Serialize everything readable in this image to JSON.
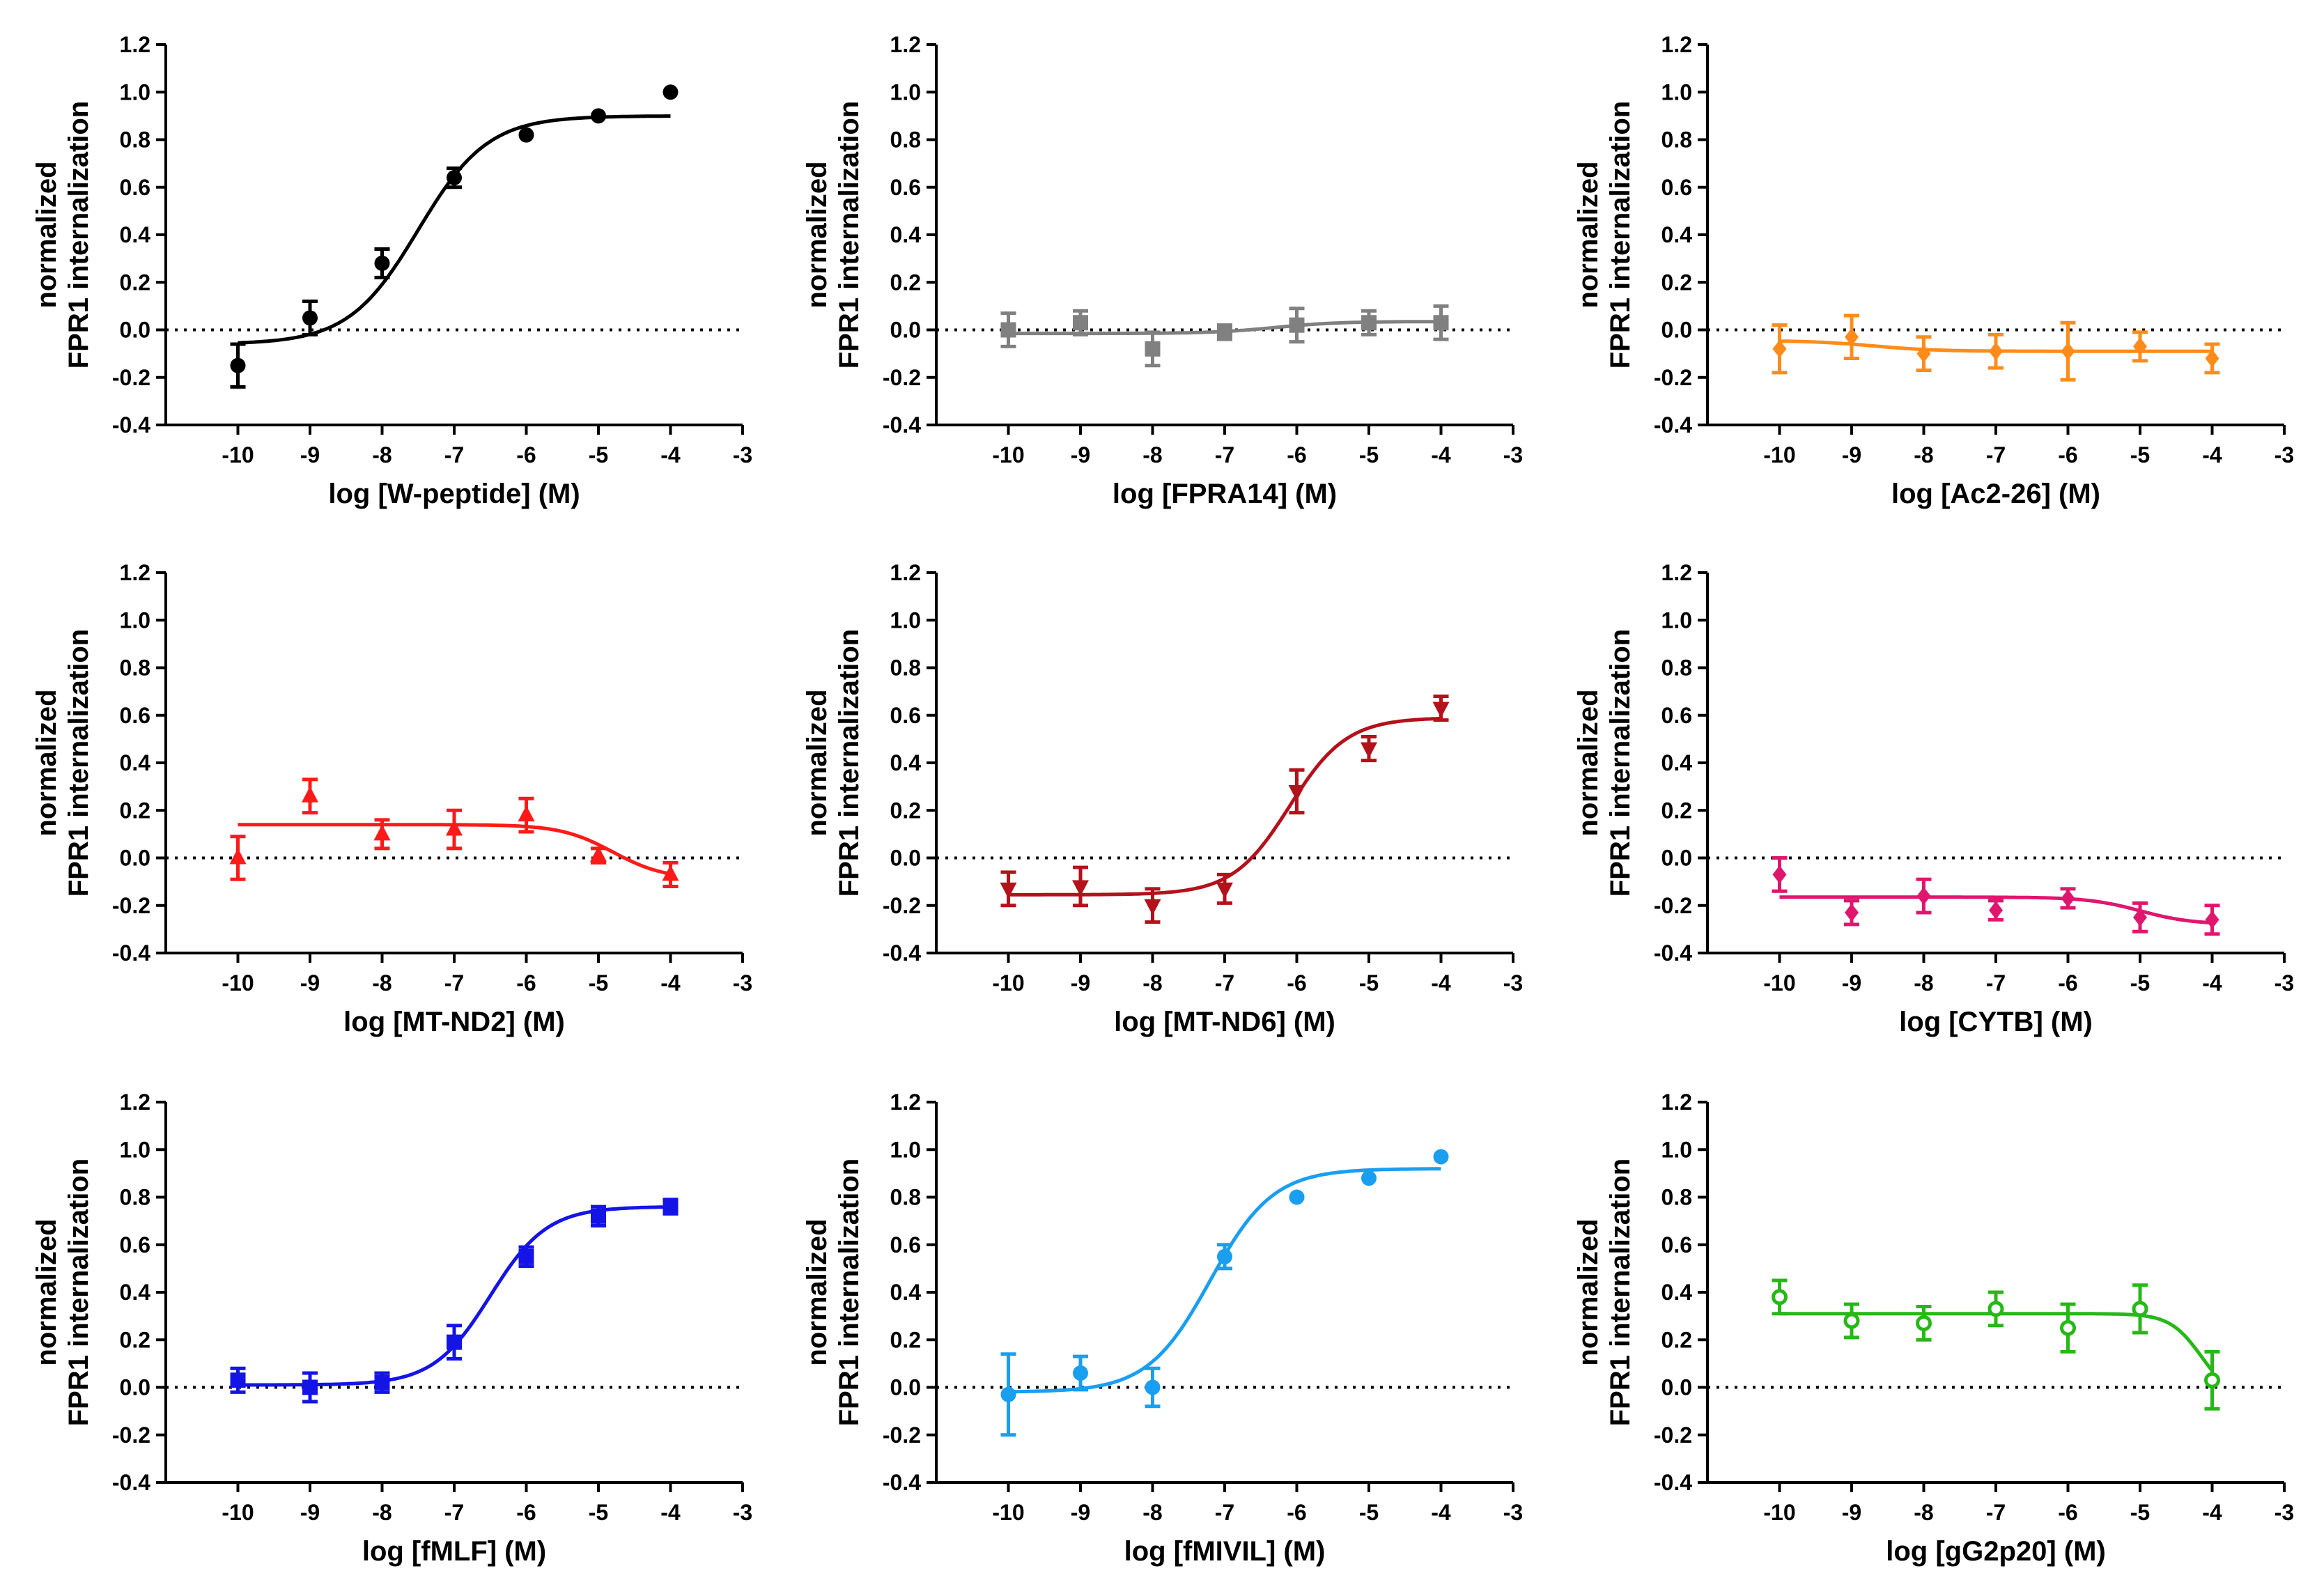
{
  "chart_data": [
    {
      "type": "scatter",
      "title": "",
      "xlabel": "log [W-peptide] (M)",
      "ylabel": [
        "normalized",
        "FPR1 internalization"
      ],
      "color": "#000000",
      "marker": "circle",
      "x": [
        -10,
        -9,
        -8,
        -7,
        -6,
        -5,
        -4
      ],
      "y": [
        -0.15,
        0.05,
        0.28,
        0.64,
        0.82,
        0.9,
        1.0
      ],
      "err": [
        0.09,
        0.07,
        0.06,
        0.04,
        0.0,
        0.0,
        0.0
      ],
      "fit": {
        "bottom": -0.06,
        "top": 0.9,
        "logec50": -7.5,
        "hill": 0.9
      },
      "xlim": [
        -11,
        -3
      ],
      "ylim": [
        -0.4,
        1.2
      ],
      "xticks": [
        -10,
        -9,
        -8,
        -7,
        -6,
        -5,
        -4,
        -3
      ],
      "yticks": [
        -0.4,
        -0.2,
        0.0,
        0.2,
        0.4,
        0.6,
        0.8,
        1.0,
        1.2
      ],
      "baseline": 0
    },
    {
      "type": "scatter",
      "title": "",
      "xlabel": "log [FPRA14] (M)",
      "ylabel": [
        "normalized",
        "FPR1 internalization"
      ],
      "color": "#808080",
      "marker": "square",
      "x": [
        -10,
        -9,
        -8,
        -7,
        -6,
        -5,
        -4
      ],
      "y": [
        0.0,
        0.03,
        -0.08,
        -0.01,
        0.02,
        0.03,
        0.03
      ],
      "err": [
        0.07,
        0.05,
        0.07,
        0.03,
        0.07,
        0.05,
        0.07
      ],
      "fit": {
        "bottom": -0.015,
        "top": 0.035,
        "logec50": -6.3,
        "hill": 1.0
      },
      "xlim": [
        -11,
        -3
      ],
      "ylim": [
        -0.4,
        1.2
      ],
      "xticks": [
        -10,
        -9,
        -8,
        -7,
        -6,
        -5,
        -4,
        -3
      ],
      "yticks": [
        -0.4,
        -0.2,
        0.0,
        0.2,
        0.4,
        0.6,
        0.8,
        1.0,
        1.2
      ],
      "baseline": 0
    },
    {
      "type": "scatter",
      "title": "",
      "xlabel": "log [Ac2-26] (M)",
      "ylabel": [
        "normalized",
        "FPR1 internalization"
      ],
      "color": "#ff8c1a",
      "marker": "diamond",
      "x": [
        -10,
        -9,
        -8,
        -7,
        -6,
        -5,
        -4
      ],
      "y": [
        -0.08,
        -0.03,
        -0.1,
        -0.09,
        -0.09,
        -0.07,
        -0.12
      ],
      "err": [
        0.1,
        0.09,
        0.07,
        0.07,
        0.12,
        0.06,
        0.06
      ],
      "fit": {
        "bottom": -0.045,
        "top": -0.09,
        "logec50": -8.7,
        "hill": 1.0
      },
      "xlim": [
        -11,
        -3
      ],
      "ylim": [
        -0.4,
        1.2
      ],
      "xticks": [
        -10,
        -9,
        -8,
        -7,
        -6,
        -5,
        -4,
        -3
      ],
      "yticks": [
        -0.4,
        -0.2,
        0.0,
        0.2,
        0.4,
        0.6,
        0.8,
        1.0,
        1.2
      ],
      "baseline": 0
    },
    {
      "type": "scatter",
      "title": "",
      "xlabel": "log [MT-ND2] (M)",
      "ylabel": [
        "normalized",
        "FPR1 internalization"
      ],
      "color": "#ff1a1a",
      "marker": "triangle-up",
      "x": [
        -10,
        -9,
        -8,
        -7,
        -6,
        -5,
        -4
      ],
      "y": [
        0.0,
        0.26,
        0.1,
        0.12,
        0.18,
        0.01,
        -0.07
      ],
      "err": [
        0.09,
        0.07,
        0.06,
        0.08,
        0.07,
        0.03,
        0.05
      ],
      "fit": {
        "bottom": 0.14,
        "top": -0.09,
        "logec50": -4.8,
        "hill": 1.2
      },
      "xlim": [
        -11,
        -3
      ],
      "ylim": [
        -0.4,
        1.2
      ],
      "xticks": [
        -10,
        -9,
        -8,
        -7,
        -6,
        -5,
        -4,
        -3
      ],
      "yticks": [
        -0.4,
        -0.2,
        0.0,
        0.2,
        0.4,
        0.6,
        0.8,
        1.0,
        1.2
      ],
      "baseline": 0
    },
    {
      "type": "scatter",
      "title": "",
      "xlabel": "log [MT-ND6] (M)",
      "ylabel": [
        "normalized",
        "FPR1 internalization"
      ],
      "color": "#b3111b",
      "marker": "triangle-down",
      "x": [
        -10,
        -9,
        -8,
        -7,
        -6,
        -5,
        -4
      ],
      "y": [
        -0.13,
        -0.12,
        -0.2,
        -0.13,
        0.28,
        0.46,
        0.63
      ],
      "err": [
        0.07,
        0.08,
        0.07,
        0.06,
        0.09,
        0.05,
        0.05
      ],
      "fit": {
        "bottom": -0.155,
        "top": 0.59,
        "logec50": -6.1,
        "hill": 1.1
      },
      "xlim": [
        -11,
        -3
      ],
      "ylim": [
        -0.4,
        1.2
      ],
      "xticks": [
        -10,
        -9,
        -8,
        -7,
        -6,
        -5,
        -4,
        -3
      ],
      "yticks": [
        -0.4,
        -0.2,
        0.0,
        0.2,
        0.4,
        0.6,
        0.8,
        1.0,
        1.2
      ],
      "baseline": 0
    },
    {
      "type": "scatter",
      "title": "",
      "xlabel": "log [CYTB] (M)",
      "ylabel": [
        "normalized",
        "FPR1 internalization"
      ],
      "color": "#e0166e",
      "marker": "diamond",
      "x": [
        -10,
        -9,
        -8,
        -7,
        -6,
        -5,
        -4
      ],
      "y": [
        -0.07,
        -0.23,
        -0.16,
        -0.22,
        -0.17,
        -0.25,
        -0.26
      ],
      "err": [
        0.07,
        0.05,
        0.07,
        0.04,
        0.04,
        0.06,
        0.06
      ],
      "fit": {
        "bottom": -0.165,
        "top": -0.28,
        "logec50": -5.0,
        "hill": 1.2
      },
      "xlim": [
        -11,
        -3
      ],
      "ylim": [
        -0.4,
        1.2
      ],
      "xticks": [
        -10,
        -9,
        -8,
        -7,
        -6,
        -5,
        -4,
        -3
      ],
      "yticks": [
        -0.4,
        -0.2,
        0.0,
        0.2,
        0.4,
        0.6,
        0.8,
        1.0,
        1.2
      ],
      "baseline": 0
    },
    {
      "type": "scatter",
      "title": "",
      "xlabel": "log [fMLF] (M)",
      "ylabel": [
        "normalized",
        "FPR1 internalization"
      ],
      "color": "#1414e6",
      "marker": "square",
      "x": [
        -10,
        -9,
        -8,
        -7,
        -6,
        -5,
        -4
      ],
      "y": [
        0.03,
        0.0,
        0.02,
        0.19,
        0.55,
        0.72,
        0.76
      ],
      "err": [
        0.05,
        0.06,
        0.04,
        0.07,
        0.04,
        0.04,
        0.03
      ],
      "fit": {
        "bottom": 0.01,
        "top": 0.76,
        "logec50": -6.5,
        "hill": 1.1
      },
      "xlim": [
        -11,
        -3
      ],
      "ylim": [
        -0.4,
        1.2
      ],
      "xticks": [
        -10,
        -9,
        -8,
        -7,
        -6,
        -5,
        -4,
        -3
      ],
      "yticks": [
        -0.4,
        -0.2,
        0.0,
        0.2,
        0.4,
        0.6,
        0.8,
        1.0,
        1.2
      ],
      "baseline": 0
    },
    {
      "type": "scatter",
      "title": "",
      "xlabel": "log [fMIVIL] (M)",
      "ylabel": [
        "normalized",
        "FPR1 internalization"
      ],
      "color": "#1a9ef0",
      "marker": "circle",
      "x": [
        -10,
        -9,
        -8,
        -7,
        -6,
        -5,
        -4
      ],
      "y": [
        -0.03,
        0.06,
        0.0,
        0.55,
        0.8,
        0.88,
        0.97
      ],
      "err": [
        0.17,
        0.07,
        0.08,
        0.05,
        0.0,
        0.0,
        0.0
      ],
      "fit": {
        "bottom": -0.02,
        "top": 0.92,
        "logec50": -7.2,
        "hill": 1.0
      },
      "xlim": [
        -11,
        -3
      ],
      "ylim": [
        -0.4,
        1.2
      ],
      "xticks": [
        -10,
        -9,
        -8,
        -7,
        -6,
        -5,
        -4,
        -3
      ],
      "yticks": [
        -0.4,
        -0.2,
        0.0,
        0.2,
        0.4,
        0.6,
        0.8,
        1.0,
        1.2
      ],
      "baseline": 0
    },
    {
      "type": "scatter",
      "title": "",
      "xlabel": "log [gG2p20] (M)",
      "ylabel": [
        "normalized",
        "FPR1 internalization"
      ],
      "color": "#26b816",
      "marker": "open-circle",
      "x": [
        -10,
        -9,
        -8,
        -7,
        -6,
        -5,
        -4
      ],
      "y": [
        0.38,
        0.28,
        0.27,
        0.33,
        0.25,
        0.33,
        0.03
      ],
      "err": [
        0.07,
        0.07,
        0.07,
        0.07,
        0.1,
        0.1,
        0.12
      ],
      "fit": {
        "bottom": 0.31,
        "top": -0.05,
        "logec50": -4.15,
        "hill": 2.0
      },
      "xlim": [
        -11,
        -3
      ],
      "ylim": [
        -0.4,
        1.2
      ],
      "xticks": [
        -10,
        -9,
        -8,
        -7,
        -6,
        -5,
        -4,
        -3
      ],
      "yticks": [
        -0.4,
        -0.2,
        0.0,
        0.2,
        0.4,
        0.6,
        0.8,
        1.0,
        1.2
      ],
      "baseline": 0
    }
  ]
}
